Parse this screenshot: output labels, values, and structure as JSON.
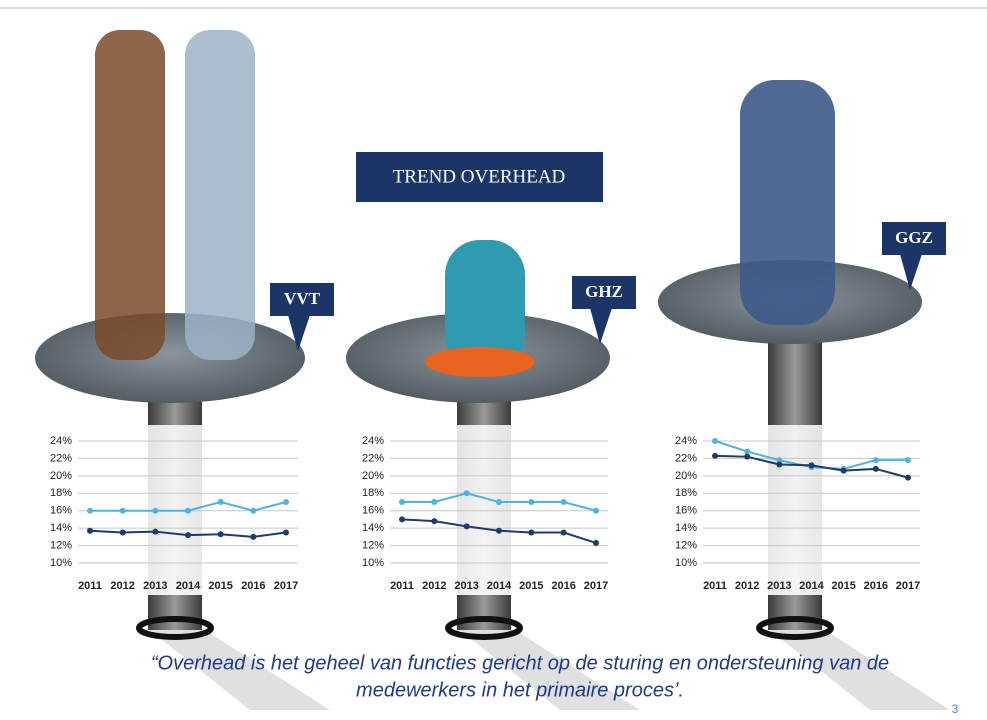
{
  "slide": {
    "title": "TREND OVERHEAD",
    "quote": [
      "“Overhead is het geheel van functies gericht op de sturing en ondersteuning van de",
      "medewerkers in het primaire proces’."
    ],
    "page": "3"
  },
  "chart_data": [
    {
      "type": "line",
      "title": "VVT",
      "categories": [
        "2011",
        "2012",
        "2013",
        "2014",
        "2015",
        "2016",
        "2017"
      ],
      "series": [
        {
          "color": "#4fb3e0",
          "values": [
            16,
            16,
            16,
            16,
            17,
            16,
            17
          ]
        },
        {
          "color": "#1f3a6e",
          "values": [
            13.7,
            13.5,
            13.6,
            13.2,
            13.3,
            13.0,
            13.5
          ]
        }
      ],
      "ylim": [
        10,
        24
      ],
      "yticks": [
        {
          "value": 10,
          "label": "10%"
        },
        {
          "value": 12,
          "label": "12%"
        },
        {
          "value": 14,
          "label": "14%"
        },
        {
          "value": 16,
          "label": "16%"
        },
        {
          "value": 18,
          "label": "18%"
        },
        {
          "value": 20,
          "label": "20%"
        },
        {
          "value": 22,
          "label": "22%"
        },
        {
          "value": 24,
          "label": "24%"
        }
      ],
      "grid": true
    },
    {
      "type": "line",
      "title": "GHZ",
      "categories": [
        "2011",
        "2012",
        "2013",
        "2014",
        "2015",
        "2016",
        "2017"
      ],
      "series": [
        {
          "color": "#4fb3e0",
          "values": [
            17,
            17,
            18,
            17,
            17,
            17,
            16
          ]
        },
        {
          "color": "#1f3a6e",
          "values": [
            15,
            14.8,
            14.2,
            13.7,
            13.5,
            13.5,
            12.3
          ]
        }
      ],
      "ylim": [
        10,
        24
      ],
      "yticks": [
        {
          "value": 10,
          "label": "10%"
        },
        {
          "value": 12,
          "label": "12%"
        },
        {
          "value": 14,
          "label": "14%"
        },
        {
          "value": 16,
          "label": "16%"
        },
        {
          "value": 18,
          "label": "18%"
        },
        {
          "value": 20,
          "label": "20%"
        },
        {
          "value": 22,
          "label": "22%"
        },
        {
          "value": 24,
          "label": "24%"
        }
      ],
      "grid": true
    },
    {
      "type": "line",
      "title": "GGZ",
      "categories": [
        "2011",
        "2012",
        "2013",
        "2014",
        "2015",
        "2016",
        "2017"
      ],
      "series": [
        {
          "color": "#4fb3e0",
          "values": [
            24,
            22.8,
            21.8,
            21,
            20.8,
            21.8,
            21.8
          ]
        },
        {
          "color": "#1f3a6e",
          "values": [
            22.3,
            22.2,
            21.3,
            21.2,
            20.6,
            20.8,
            19.8
          ]
        }
      ],
      "ylim": [
        10,
        24
      ],
      "yticks": [
        {
          "value": 10,
          "label": "10%"
        },
        {
          "value": 12,
          "label": "12%"
        },
        {
          "value": 14,
          "label": "14%"
        },
        {
          "value": 16,
          "label": "16%"
        },
        {
          "value": 18,
          "label": "18%"
        },
        {
          "value": 20,
          "label": "20%"
        },
        {
          "value": 22,
          "label": "22%"
        },
        {
          "value": 24,
          "label": "24%"
        }
      ],
      "grid": true
    }
  ]
}
